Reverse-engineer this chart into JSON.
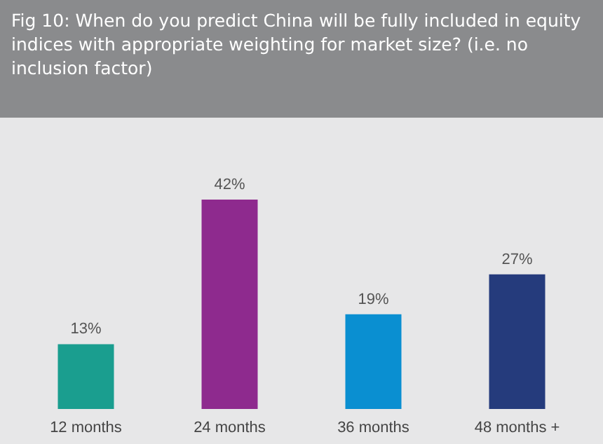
{
  "chart_data": {
    "type": "bar",
    "title": "Fig 10: When do you predict China will be fully included in equity indices with appropriate weighting for market size? (i.e. no inclusion factor)",
    "categories": [
      "12 months",
      "24 months",
      "36 months",
      "48 months +"
    ],
    "values": [
      13,
      42,
      19,
      27
    ],
    "colors": [
      "#1a9e8f",
      "#8e2a8e",
      "#0a8fd1",
      "#253b7c"
    ],
    "value_labels": [
      "13%",
      "42%",
      "19%",
      "27%"
    ]
  }
}
